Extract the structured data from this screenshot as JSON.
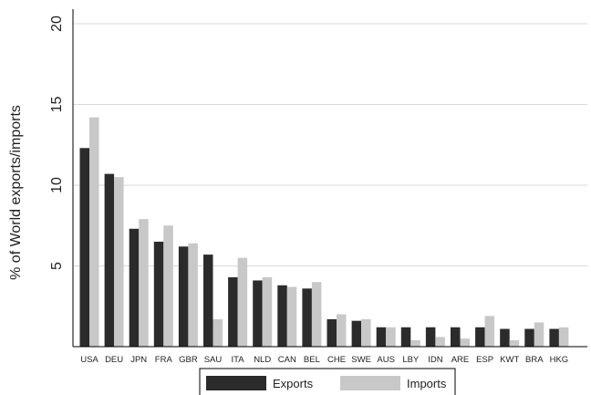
{
  "chart_data": {
    "type": "bar",
    "ylabel": "% of World exports/imports",
    "xlabel": "",
    "ylim": [
      0,
      20
    ],
    "yticks": [
      5,
      10,
      15,
      20
    ],
    "grid": true,
    "legend_position": "bottom",
    "categories": [
      "USA",
      "DEU",
      "JPN",
      "FRA",
      "GBR",
      "SAU",
      "ITA",
      "NLD",
      "CAN",
      "BEL",
      "CHE",
      "SWE",
      "AUS",
      "LBY",
      "IDN",
      "ARE",
      "ESP",
      "KWT",
      "BRA",
      "HKG"
    ],
    "series": [
      {
        "name": "Exports",
        "color": "#2b2b2b",
        "values": [
          12.3,
          10.7,
          7.3,
          6.5,
          6.2,
          5.7,
          4.3,
          4.1,
          3.8,
          3.6,
          1.7,
          1.6,
          1.2,
          1.2,
          1.2,
          1.2,
          1.2,
          1.1,
          1.1,
          1.1
        ]
      },
      {
        "name": "Imports",
        "color": "#c8c8c8",
        "values": [
          14.2,
          10.5,
          7.9,
          7.5,
          6.4,
          1.7,
          5.5,
          4.3,
          3.7,
          4.0,
          2.0,
          1.7,
          1.2,
          0.4,
          0.6,
          0.5,
          1.9,
          0.4,
          1.5,
          1.2
        ]
      }
    ]
  }
}
